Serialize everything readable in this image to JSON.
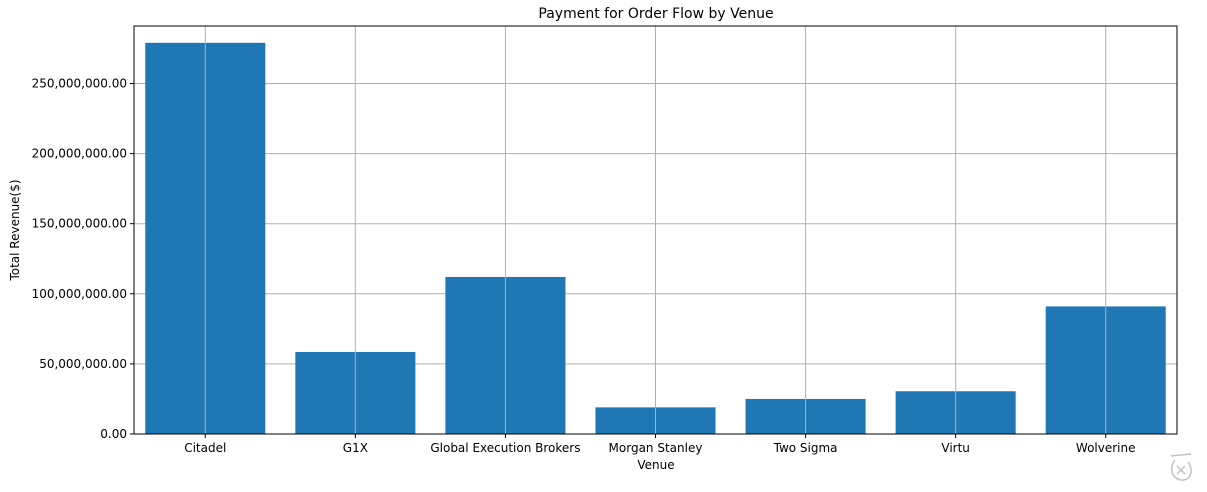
{
  "chart_data": {
    "type": "bar",
    "title": "Payment for Order Flow by Venue",
    "xlabel": "Venue",
    "ylabel": "Total Revenue($)",
    "categories": [
      "Citadel",
      "G1X",
      "Global Execution Brokers",
      "Morgan Stanley",
      "Two Sigma",
      "Virtu",
      "Wolverine"
    ],
    "values": [
      279000000,
      58500000,
      112000000,
      19000000,
      25000000,
      30500000,
      91000000
    ],
    "ylim": [
      0,
      291000000
    ],
    "yticks": [
      0,
      50000000,
      100000000,
      150000000,
      200000000,
      250000000
    ],
    "ytick_labels": [
      "0.00",
      "50,000,000.00",
      "100,000,000.00",
      "150,000,000.00",
      "200,000,000.00",
      "250,000,000.00"
    ],
    "grid": true,
    "bar_color": "#1f77b4",
    "grid_color": "#b0b0b0"
  }
}
